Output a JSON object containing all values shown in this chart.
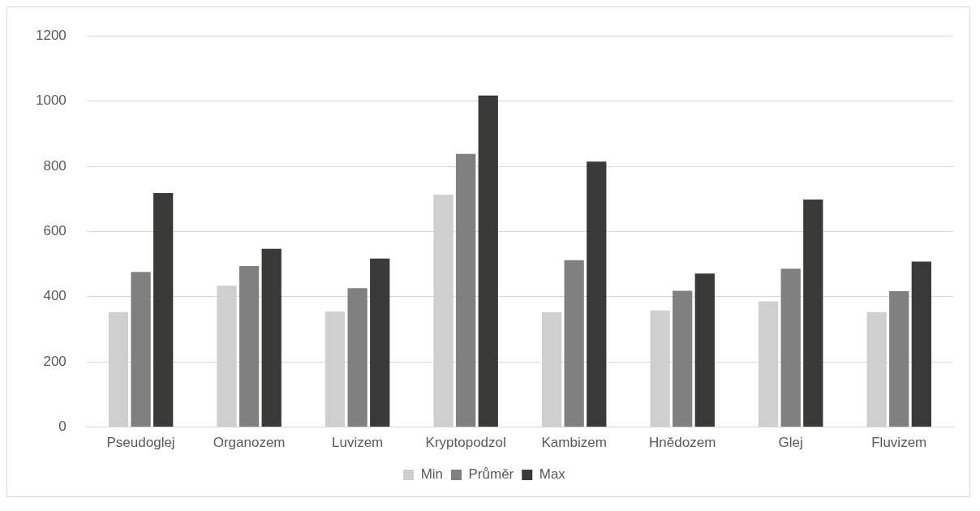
{
  "chart_data": {
    "type": "bar",
    "categories": [
      "Pseudoglej",
      "Organozem",
      "Luvizem",
      "Kryptopodzol",
      "Kambizem",
      "Hnědozem",
      "Glej",
      "Fluvizem"
    ],
    "series": [
      {
        "name": "Min",
        "color": "#cfcfcf",
        "values": [
          353,
          434,
          355,
          713,
          352,
          358,
          386,
          353
        ]
      },
      {
        "name": "Průměr",
        "color": "#808080",
        "values": [
          476,
          494,
          426,
          838,
          512,
          418,
          486,
          417
        ]
      },
      {
        "name": "Max",
        "color": "#393937",
        "values": [
          718,
          547,
          517,
          1017,
          814,
          471,
          698,
          508
        ]
      }
    ],
    "ylim": [
      0,
      1200
    ],
    "yticks": [
      0,
      200,
      400,
      600,
      800,
      1000,
      1200
    ],
    "grid": "y",
    "legend": "bottom"
  }
}
